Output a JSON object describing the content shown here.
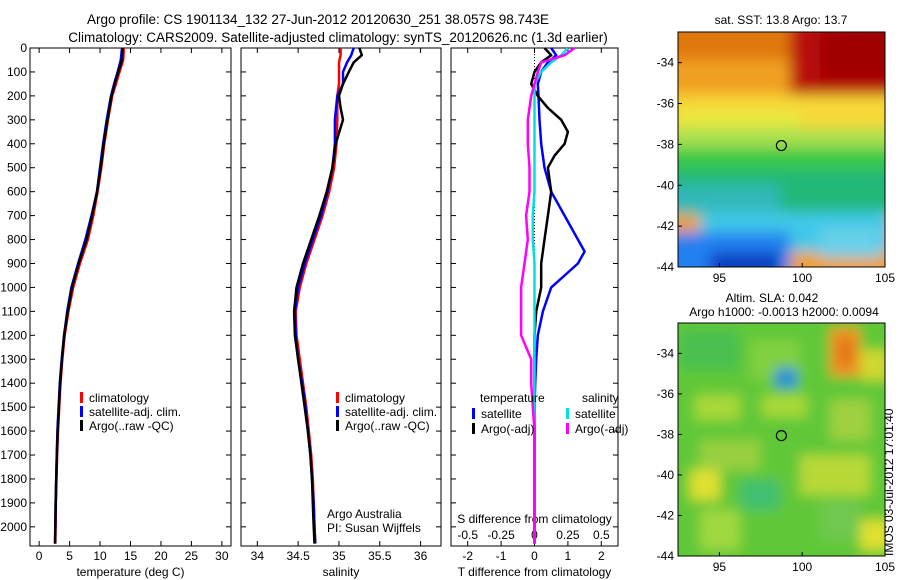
{
  "title_line1": "Argo profile: CS 1901134_132 27-Jun-2012 20120630_251 38.057S 98.743E",
  "title_line2": "Climatology: CARS2009. Satellite-adjusted climatology: synTS_20120626.nc (1.3d earlier)",
  "colors": {
    "red": "#ff0000",
    "blue": "#0000ff",
    "black": "#000000",
    "cyan": "#00e0e0",
    "magenta": "#ff00ff"
  },
  "chart_data": [
    {
      "type": "line",
      "id": "temperature",
      "xlabel": "temperature (deg C)",
      "xlim": [
        -1.5,
        31.5
      ],
      "ylim": [
        2080,
        0
      ],
      "xticks": [
        0,
        5,
        10,
        15,
        20,
        25,
        30
      ],
      "yticks": [
        0,
        100,
        200,
        300,
        400,
        500,
        600,
        700,
        800,
        900,
        1000,
        1100,
        1200,
        1300,
        1400,
        1500,
        1600,
        1700,
        1800,
        1900,
        2000
      ],
      "legend": [
        "climatology",
        "satellite-adj. clim.",
        "Argo(..raw -QC)"
      ],
      "series": [
        {
          "name": "climatology",
          "color": "red",
          "depth": [
            0,
            50,
            100,
            150,
            200,
            300,
            400,
            500,
            600,
            700,
            800,
            900,
            1000,
            1100,
            1200,
            1300,
            1400,
            1500,
            1600,
            1700,
            1800,
            1900,
            2000,
            2070
          ],
          "values": [
            13.9,
            13.8,
            13.2,
            12.6,
            12.0,
            11.3,
            10.7,
            10.2,
            9.6,
            8.9,
            8.0,
            6.7,
            5.6,
            4.8,
            4.2,
            3.8,
            3.5,
            3.3,
            3.1,
            2.95,
            2.85,
            2.75,
            2.7,
            2.65
          ]
        },
        {
          "name": "satellite-adj. clim.",
          "color": "blue",
          "depth": [
            0,
            50,
            100,
            150,
            200,
            300,
            400,
            500,
            600,
            700,
            800,
            900,
            1000,
            1100,
            1200,
            1300,
            1400,
            1500,
            1600,
            1700,
            1800,
            1900,
            2000,
            2070
          ],
          "values": [
            13.6,
            13.4,
            12.9,
            12.3,
            11.8,
            11.1,
            10.5,
            10.0,
            9.5,
            8.6,
            7.6,
            6.4,
            5.3,
            4.6,
            4.1,
            3.7,
            3.4,
            3.2,
            3.0,
            2.9,
            2.8,
            2.7,
            2.65,
            2.6
          ]
        },
        {
          "name": "Argo(..raw -QC)",
          "color": "black",
          "depth": [
            0,
            50,
            100,
            150,
            200,
            300,
            400,
            500,
            600,
            700,
            800,
            900,
            1000,
            1100,
            1200,
            1300,
            1400,
            1500,
            1600,
            1700,
            1800,
            1900,
            2000,
            2070
          ],
          "values": [
            13.7,
            13.6,
            13.0,
            12.4,
            11.9,
            11.2,
            10.6,
            10.1,
            9.5,
            8.7,
            7.8,
            6.5,
            5.4,
            4.7,
            4.1,
            3.75,
            3.45,
            3.25,
            3.05,
            2.9,
            2.8,
            2.72,
            2.66,
            2.62
          ]
        }
      ]
    },
    {
      "type": "line",
      "id": "salinity",
      "xlabel": "salinity",
      "xlim": [
        33.8,
        36.25
      ],
      "ylim": [
        2080,
        0
      ],
      "xticks": [
        34,
        34.5,
        35,
        35.5,
        36
      ],
      "legend": [
        "climatology",
        "satellite-adj. clim.",
        "Argo(..raw -QC)"
      ],
      "annotation": [
        "Argo Australia",
        "PI: Susan Wijffels"
      ],
      "series": [
        {
          "name": "climatology",
          "color": "red",
          "depth": [
            0,
            30,
            60,
            100,
            150,
            200,
            300,
            400,
            500,
            600,
            700,
            800,
            900,
            1000,
            1100,
            1200,
            1300,
            1400,
            1500,
            1600,
            1700,
            1800,
            1900,
            2000,
            2070
          ],
          "values": [
            35.02,
            35.02,
            35.0,
            35.0,
            35.0,
            34.98,
            34.98,
            34.97,
            34.94,
            34.88,
            34.8,
            34.7,
            34.6,
            34.52,
            34.47,
            34.48,
            34.52,
            34.56,
            34.6,
            34.63,
            34.66,
            34.68,
            34.69,
            34.7,
            34.71
          ]
        },
        {
          "name": "satellite-adj. clim.",
          "color": "blue",
          "depth": [
            0,
            30,
            60,
            100,
            150,
            200,
            300,
            400,
            500,
            600,
            700,
            800,
            900,
            1000,
            1100,
            1200,
            1300,
            1400,
            1500,
            1600,
            1700,
            1800,
            1900,
            2000,
            2070
          ],
          "values": [
            35.18,
            35.15,
            35.1,
            35.05,
            35.05,
            34.98,
            34.95,
            34.95,
            34.92,
            34.86,
            34.78,
            34.68,
            34.58,
            34.5,
            34.46,
            34.47,
            34.5,
            34.55,
            34.59,
            34.62,
            34.65,
            34.67,
            34.69,
            34.7,
            34.71
          ]
        },
        {
          "name": "Argo(..raw -QC)",
          "color": "black",
          "depth": [
            0,
            30,
            60,
            100,
            150,
            200,
            250,
            300,
            400,
            500,
            600,
            700,
            800,
            900,
            1000,
            1100,
            1200,
            1300,
            1400,
            1500,
            1600,
            1700,
            1800,
            1900,
            2000,
            2070
          ],
          "values": [
            35.25,
            35.28,
            35.18,
            35.12,
            35.05,
            35.0,
            35.02,
            35.05,
            34.96,
            34.92,
            34.85,
            34.76,
            34.66,
            34.56,
            34.48,
            34.45,
            34.46,
            34.5,
            34.54,
            34.58,
            34.62,
            34.65,
            34.67,
            34.68,
            34.69,
            34.7
          ]
        }
      ]
    },
    {
      "type": "line",
      "id": "difference",
      "xlabel": "T difference from climatology",
      "xlabel_top": "S difference from climatology",
      "xlim": [
        -2.5,
        2.5
      ],
      "ylim": [
        2080,
        0
      ],
      "xticks": [
        -2,
        -1,
        0,
        1,
        2
      ],
      "xtick_labels": [
        "-2",
        "-1",
        "0",
        "1",
        "2"
      ],
      "xticks_top": [
        -0.5,
        -0.25,
        0,
        0.25,
        0.5
      ],
      "xticks_top_pos": [
        -2,
        -1,
        0,
        1,
        2
      ],
      "legend_titles": [
        "temperature",
        "salinity"
      ],
      "legend": [
        "satellite",
        "Argo(-adj)",
        "satellite",
        "Argo(-adj)"
      ],
      "series": [
        {
          "name": "temperature satellite",
          "color": "blue",
          "depth": [
            0,
            30,
            60,
            100,
            150,
            200,
            300,
            400,
            500,
            600,
            700,
            800,
            850,
            900,
            950,
            1000,
            1100,
            1200,
            1300,
            1400,
            1500,
            1600,
            1700,
            1800,
            1900,
            2000,
            2070
          ],
          "values": [
            0.5,
            0.65,
            0.4,
            0.2,
            0.1,
            0.12,
            0.15,
            0.2,
            0.3,
            0.5,
            0.9,
            1.3,
            1.5,
            1.3,
            0.9,
            0.5,
            0.25,
            0.1,
            0.05,
            0.02,
            0.0,
            0.0,
            0.0,
            0.0,
            0.0,
            0.0,
            0.0
          ]
        },
        {
          "name": "temperature Argo(-adj)",
          "color": "black",
          "depth": [
            0,
            30,
            60,
            100,
            150,
            200,
            250,
            300,
            350,
            400,
            450,
            500,
            600,
            700,
            800,
            900,
            1000,
            1100,
            1200,
            1300,
            1400,
            1500,
            1600,
            1700,
            1800,
            1900,
            2000,
            2070
          ],
          "values": [
            0.3,
            0.5,
            0.2,
            0.0,
            -0.1,
            0.1,
            0.4,
            0.8,
            1.0,
            0.9,
            0.6,
            0.4,
            0.5,
            0.4,
            0.3,
            0.2,
            0.2,
            0.05,
            0.0,
            0.0,
            0.0,
            0.0,
            0.0,
            0.0,
            0.0,
            0.0,
            0.0,
            0.0
          ]
        },
        {
          "name": "salinity satellite",
          "color": "cyan",
          "depth": [
            0,
            30,
            60,
            100,
            150,
            200,
            300,
            400,
            500,
            600,
            700,
            800,
            900,
            1000,
            1100,
            1200,
            1300,
            1400,
            1500,
            1600,
            1700,
            1800,
            1900,
            2000,
            2070
          ],
          "values": [
            1.0,
            0.8,
            0.5,
            0.2,
            0.0,
            0.0,
            0.0,
            0.0,
            0.0,
            0.0,
            -0.05,
            -0.05,
            0.0,
            0.0,
            0.0,
            0.0,
            0.0,
            0.0,
            0.0,
            0.0,
            0.0,
            0.0,
            0.0,
            0.0,
            0.0
          ]
        },
        {
          "name": "salinity Argo(-adj)",
          "color": "magenta",
          "depth": [
            0,
            30,
            60,
            100,
            150,
            200,
            300,
            400,
            500,
            600,
            700,
            800,
            900,
            1000,
            1100,
            1200,
            1300,
            1400,
            1500,
            1600,
            1700,
            1800,
            1900,
            2000,
            2070
          ],
          "values": [
            1.2,
            0.9,
            0.2,
            0.1,
            0.0,
            -0.1,
            -0.2,
            -0.2,
            -0.15,
            -0.15,
            -0.25,
            -0.2,
            -0.3,
            -0.4,
            -0.4,
            -0.4,
            -0.1,
            -0.1,
            -0.05,
            0.0,
            0.0,
            0.0,
            0.0,
            0.0,
            0.0
          ]
        }
      ]
    },
    {
      "type": "heatmap",
      "id": "sst_map",
      "title": "sat. SST: 13.8 Argo: 13.7",
      "xlim": [
        92.5,
        105
      ],
      "ylim": [
        -44,
        -32.5
      ],
      "xticks": [
        95,
        100,
        105
      ],
      "yticks": [
        -34,
        -36,
        -38,
        -40,
        -42,
        -44
      ],
      "marker": {
        "lon": 98.743,
        "lat": -38.057
      }
    },
    {
      "type": "heatmap",
      "id": "sla_map",
      "title_line1": "Altim. SLA: 0.042",
      "title_line2": "Argo h1000: -0.0013 h2000: 0.0094",
      "xlim": [
        92.5,
        105
      ],
      "ylim": [
        -44,
        -32.5
      ],
      "xticks": [
        95,
        100,
        105
      ],
      "yticks": [
        -34,
        -36,
        -38,
        -40,
        -42,
        -44
      ],
      "marker": {
        "lon": 98.743,
        "lat": -38.057
      }
    }
  ],
  "side_label": "IMOS 03-Jul-2012 17:01:40"
}
